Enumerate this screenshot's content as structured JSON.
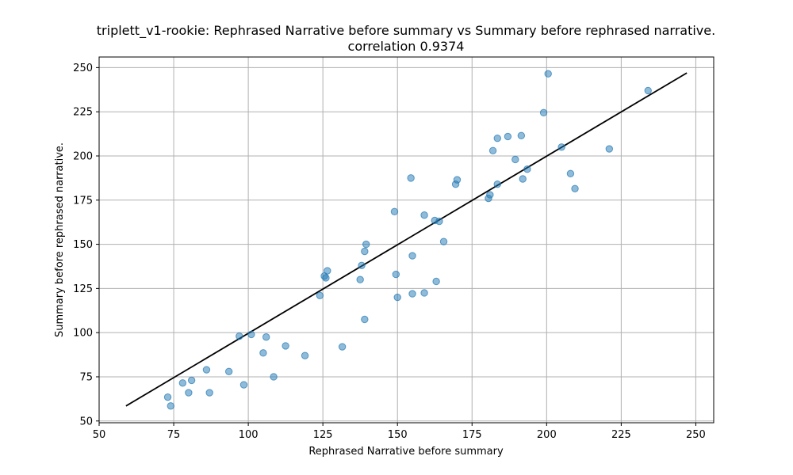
{
  "chart_data": {
    "type": "scatter",
    "title": "triplett_v1-rookie: Rephrased Narrative before summary vs Summary before rephrased narrative.",
    "subtitle": "correlation 0.9374",
    "xlabel": "Rephrased Narrative before summary",
    "ylabel": "Summary before rephrased narrative.",
    "xlim": [
      50,
      256
    ],
    "ylim": [
      49,
      256
    ],
    "xticks": [
      50,
      75,
      100,
      125,
      150,
      175,
      200,
      225,
      250
    ],
    "yticks": [
      50,
      75,
      100,
      125,
      150,
      175,
      200,
      225,
      250
    ],
    "grid": true,
    "colors": {
      "points": "#1f77b4",
      "line": "#000000"
    },
    "fit_line": {
      "x": [
        59,
        247
      ],
      "y": [
        58.5,
        247
      ]
    },
    "points": [
      {
        "x": 73,
        "y": 63.5
      },
      {
        "x": 74,
        "y": 58.5
      },
      {
        "x": 78,
        "y": 71.5
      },
      {
        "x": 80,
        "y": 66
      },
      {
        "x": 81,
        "y": 73
      },
      {
        "x": 86,
        "y": 79
      },
      {
        "x": 87,
        "y": 66
      },
      {
        "x": 93.5,
        "y": 78
      },
      {
        "x": 97,
        "y": 98
      },
      {
        "x": 98.5,
        "y": 70.5
      },
      {
        "x": 101,
        "y": 99
      },
      {
        "x": 105,
        "y": 88.5
      },
      {
        "x": 106,
        "y": 97.5
      },
      {
        "x": 108.5,
        "y": 75
      },
      {
        "x": 112.5,
        "y": 92.5
      },
      {
        "x": 119,
        "y": 87
      },
      {
        "x": 124,
        "y": 121
      },
      {
        "x": 125.5,
        "y": 132
      },
      {
        "x": 126,
        "y": 131
      },
      {
        "x": 126.5,
        "y": 135
      },
      {
        "x": 131.5,
        "y": 92
      },
      {
        "x": 137.5,
        "y": 130
      },
      {
        "x": 138,
        "y": 138
      },
      {
        "x": 139,
        "y": 146
      },
      {
        "x": 139,
        "y": 107.5
      },
      {
        "x": 139.5,
        "y": 150
      },
      {
        "x": 149,
        "y": 168.5
      },
      {
        "x": 149.5,
        "y": 133
      },
      {
        "x": 150,
        "y": 120
      },
      {
        "x": 154.5,
        "y": 187.5
      },
      {
        "x": 155,
        "y": 143.5
      },
      {
        "x": 155,
        "y": 122
      },
      {
        "x": 159,
        "y": 166.5
      },
      {
        "x": 159,
        "y": 122.5
      },
      {
        "x": 162.5,
        "y": 163.5
      },
      {
        "x": 163,
        "y": 129
      },
      {
        "x": 164,
        "y": 163
      },
      {
        "x": 165.5,
        "y": 151.5
      },
      {
        "x": 169.5,
        "y": 184
      },
      {
        "x": 170,
        "y": 186.5
      },
      {
        "x": 180.5,
        "y": 176
      },
      {
        "x": 181,
        "y": 178
      },
      {
        "x": 182,
        "y": 203
      },
      {
        "x": 183.5,
        "y": 184
      },
      {
        "x": 183.5,
        "y": 210
      },
      {
        "x": 187,
        "y": 211
      },
      {
        "x": 189.5,
        "y": 198
      },
      {
        "x": 191.5,
        "y": 211.5
      },
      {
        "x": 192,
        "y": 187
      },
      {
        "x": 193.5,
        "y": 192.5
      },
      {
        "x": 199,
        "y": 224.5
      },
      {
        "x": 200.5,
        "y": 246.5
      },
      {
        "x": 205,
        "y": 205
      },
      {
        "x": 208,
        "y": 190
      },
      {
        "x": 209.5,
        "y": 181.5
      },
      {
        "x": 221,
        "y": 204
      },
      {
        "x": 234,
        "y": 237
      }
    ]
  }
}
